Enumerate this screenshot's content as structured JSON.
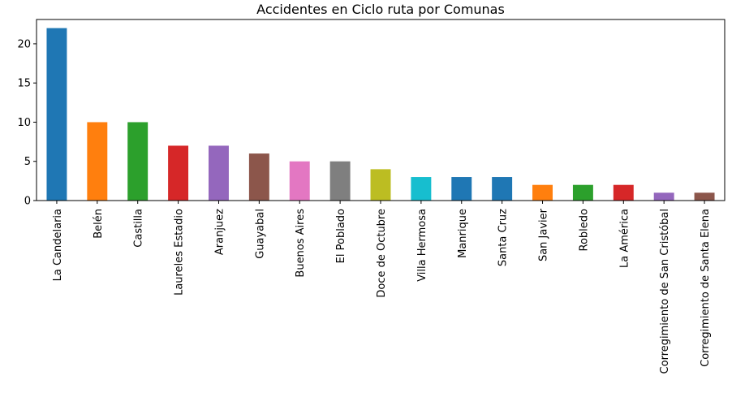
{
  "chart_data": {
    "type": "bar",
    "title": "Accidentes en Ciclo ruta por Comunas",
    "xlabel": "",
    "ylabel": "",
    "ylim": [
      0,
      23.1
    ],
    "yticks": [
      0,
      5,
      10,
      15,
      20
    ],
    "grid": false,
    "categories": [
      "La Candelaria",
      "Belén",
      "Castilla",
      "Laureles Estadio",
      "Aranjuez",
      "Guayabal",
      "Buenos Aires",
      "El Poblado",
      "Doce de Octubre",
      "Villa Hermosa",
      "Manrique",
      "Santa Cruz",
      "San Javier",
      "Robledo",
      "La América",
      "Corregimiento de San Cristóbal",
      "Corregimiento de Santa Elena"
    ],
    "values": [
      22,
      10,
      10,
      7,
      7,
      6,
      5,
      5,
      4,
      3,
      3,
      3,
      2,
      2,
      2,
      1,
      1
    ],
    "colors": [
      "#1f77b4",
      "#ff7f0e",
      "#2ca02c",
      "#d62728",
      "#9467bd",
      "#8c564b",
      "#e377c2",
      "#7f7f7f",
      "#bcbd22",
      "#17becf",
      "#1f77b4",
      "#1f77b4",
      "#ff7f0e",
      "#2ca02c",
      "#d62728",
      "#9467bd",
      "#8c564b"
    ]
  }
}
